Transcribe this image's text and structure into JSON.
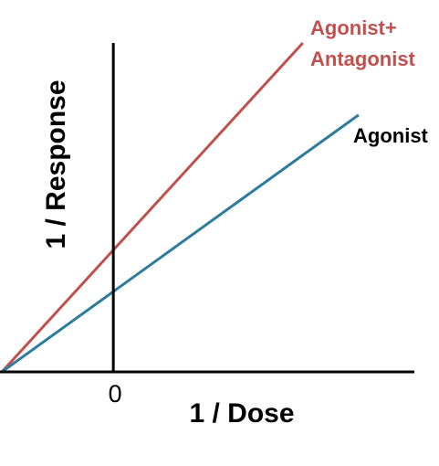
{
  "chart_data": {
    "type": "line",
    "title": "",
    "xlabel": "1 / Dose",
    "ylabel": "1 / Response",
    "x_ticks": [
      "0"
    ],
    "series": [
      {
        "name": "Agonist+",
        "name_line2": "Antagonist",
        "color": "#c0504d",
        "x": [
          -0.1,
          0.17
        ],
        "y": [
          0,
          0.32
        ]
      },
      {
        "name": "Agonist",
        "color": "#2e7c9c",
        "x": [
          -0.1,
          0.22
        ],
        "y": [
          0,
          0.25
        ]
      }
    ],
    "xlim": [
      -0.1,
      0.27
    ],
    "ylim": [
      0,
      0.32
    ],
    "grid": false,
    "legend": "labels at line ends"
  }
}
